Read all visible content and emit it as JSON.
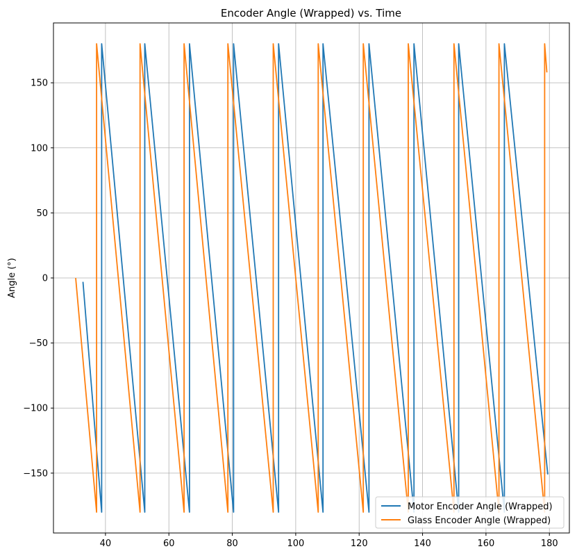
{
  "chart_data": {
    "type": "line",
    "title": "Encoder Angle (Wrapped) vs. Time",
    "xlabel": "",
    "ylabel": "Angle (°)",
    "xlim": [
      23.6,
      186.3
    ],
    "ylim": [
      -196,
      196
    ],
    "x_ticks": [
      40,
      60,
      80,
      100,
      120,
      140,
      160,
      180
    ],
    "y_ticks": [
      -150,
      -100,
      -50,
      0,
      50,
      100,
      150
    ],
    "x_tick_labels": [
      "40",
      "60",
      "80",
      "100",
      "120",
      "140",
      "160",
      "180"
    ],
    "y_tick_labels": [
      "−150",
      "−100",
      "−50",
      "0",
      "50",
      "100",
      "150"
    ],
    "grid": true,
    "legend_position": "lower right",
    "series": [
      {
        "name": "Motor Encoder Angle (Wrapped)",
        "color": "#1f77b4",
        "x": [
          32.9,
          38.8,
          38.8,
          52.4,
          52.4,
          66.5,
          66.5,
          80.4,
          80.4,
          94.6,
          94.6,
          108.6,
          108.6,
          123.1,
          123.1,
          137.3,
          137.3,
          151.4,
          151.4,
          165.8,
          165.8,
          179.5
        ],
        "y": [
          -3,
          -180,
          180,
          -180,
          180,
          -180,
          180,
          -180,
          180,
          -180,
          180,
          -180,
          180,
          -180,
          180,
          -180,
          180,
          -180,
          180,
          -180,
          180,
          -151
        ]
      },
      {
        "name": "Glass Encoder Angle (Wrapped)",
        "color": "#ff7f0e",
        "x": [
          30.6,
          37.2,
          37.2,
          50.9,
          50.9,
          64.8,
          64.8,
          78.6,
          78.6,
          92.9,
          92.9,
          107.1,
          107.1,
          121.3,
          121.3,
          135.5,
          135.5,
          149.9,
          149.9,
          164.1,
          164.1,
          178.5,
          178.5,
          179.2
        ],
        "y": [
          0,
          -180,
          180,
          -180,
          180,
          -180,
          180,
          -180,
          180,
          -180,
          180,
          -180,
          180,
          -180,
          180,
          -180,
          180,
          -180,
          180,
          -180,
          180,
          -180,
          180,
          158
        ]
      }
    ]
  }
}
